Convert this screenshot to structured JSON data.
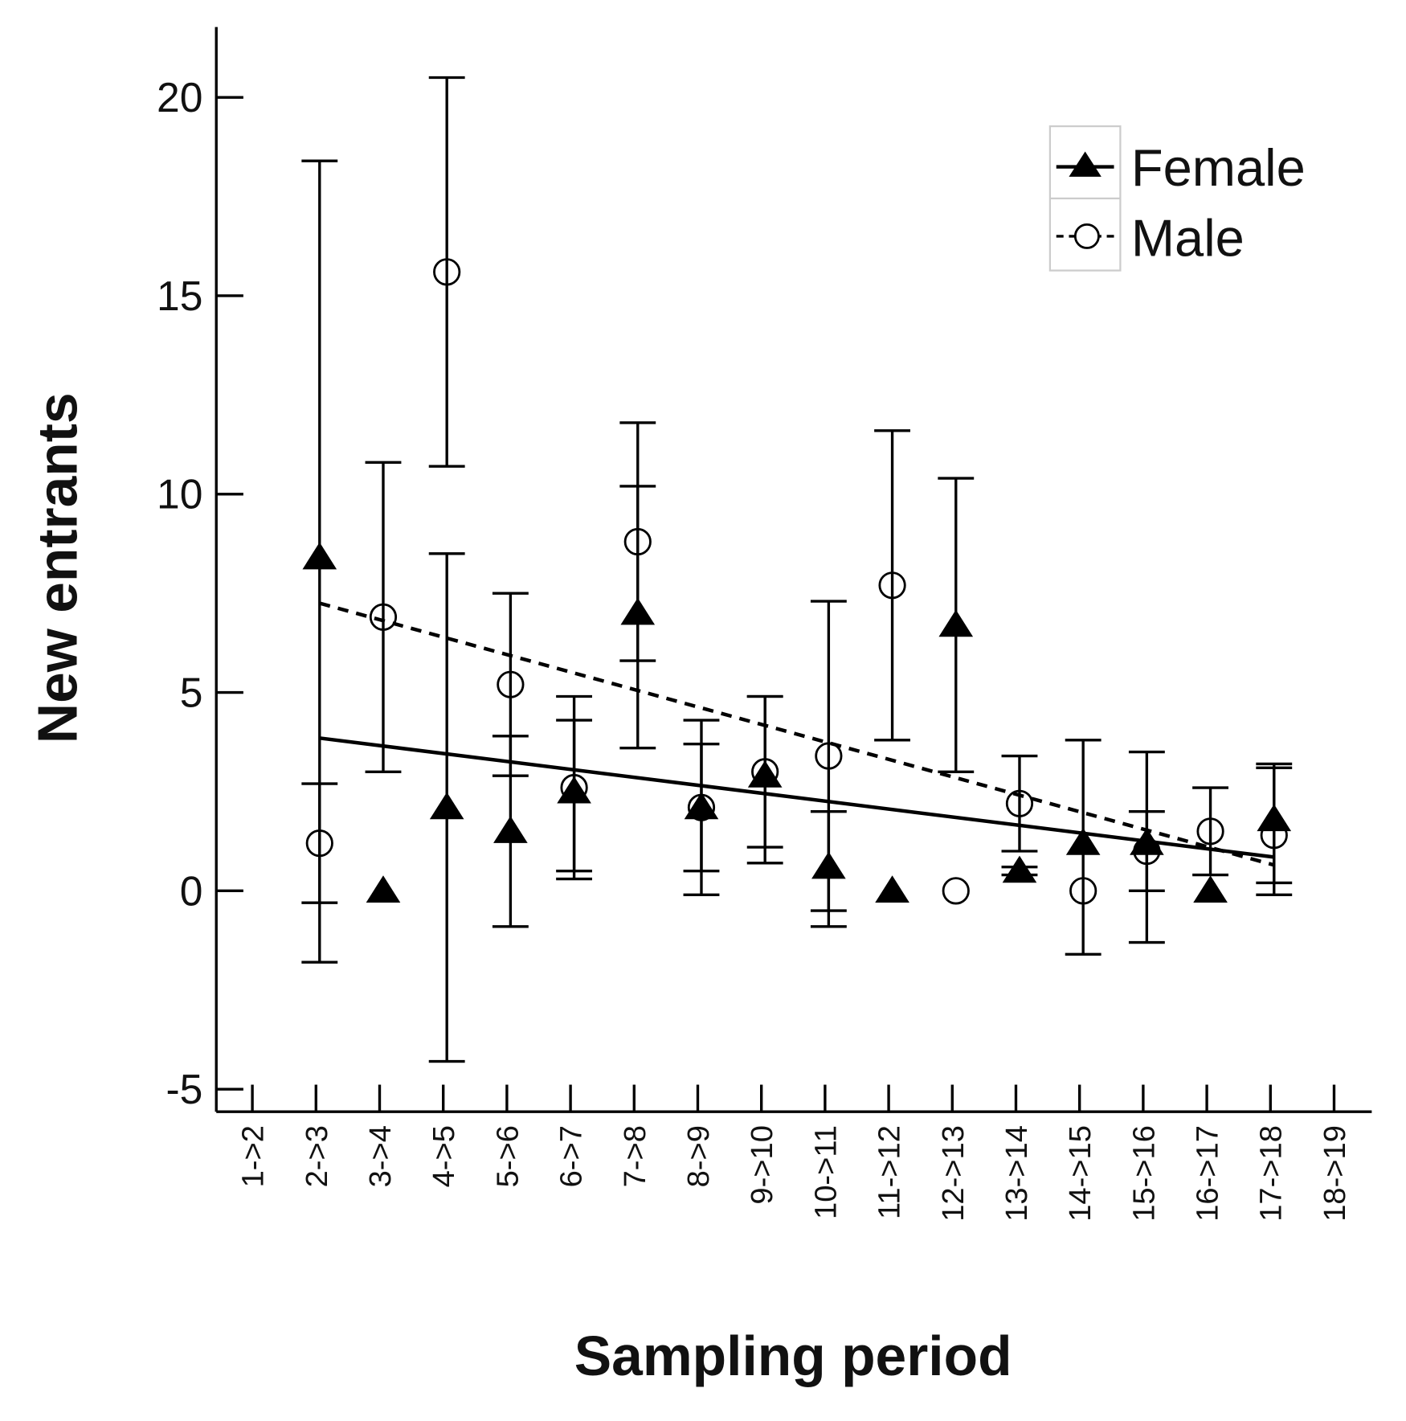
{
  "chart_data": {
    "type": "scatter",
    "title": "",
    "xlabel": "Sampling period",
    "ylabel": "New entrants",
    "ylim": [
      -5,
      20
    ],
    "yticks": [
      "-5",
      "0",
      "5",
      "10",
      "15",
      "20"
    ],
    "categories": [
      "1->2",
      "2->3",
      "3->4",
      "4->5",
      "5->6",
      "6->7",
      "7->8",
      "8->9",
      "9->10",
      "10->11",
      "11->12",
      "12->13",
      "13->14",
      "14->15",
      "15->16",
      "16->17",
      "17->18",
      "18->19"
    ],
    "legend": {
      "position": "top-right",
      "entries": [
        "Female",
        "Male"
      ]
    },
    "series": [
      {
        "name": "Female",
        "marker": "filled-triangle",
        "trend": "solid",
        "trend_line": {
          "from": {
            "x": "2->3",
            "y": 3.85
          },
          "to": {
            "x": "17->18",
            "y": 0.85
          }
        },
        "points": [
          {
            "x": "2->3",
            "y": 8.4,
            "lo": -1.8,
            "hi": 18.4
          },
          {
            "x": "3->4",
            "y": 0
          },
          {
            "x": "4->5",
            "y": 2.1,
            "lo": -4.3,
            "hi": 8.5
          },
          {
            "x": "5->6",
            "y": 1.5,
            "lo": -0.9,
            "hi": 3.9
          },
          {
            "x": "6->7",
            "y": 2.5,
            "lo": 0.3,
            "hi": 4.9
          },
          {
            "x": "7->8",
            "y": 7.0,
            "lo": 3.6,
            "hi": 10.2
          },
          {
            "x": "8->9",
            "y": 2.1,
            "lo": -0.1,
            "hi": 4.3
          },
          {
            "x": "9->10",
            "y": 2.9,
            "lo": 0.7,
            "hi": 4.9
          },
          {
            "x": "10->11",
            "y": 0.6,
            "lo": -0.9,
            "hi": 2.0
          },
          {
            "x": "11->12",
            "y": 0
          },
          {
            "x": "12->13",
            "y": 6.7,
            "lo": 3.0,
            "hi": 10.4
          },
          {
            "x": "13->14",
            "y": 0.5,
            "lo": 0.4,
            "hi": 0.6
          },
          {
            "x": "14->15",
            "y": 1.2,
            "lo": -1.6,
            "hi": 3.8
          },
          {
            "x": "15->16",
            "y": 1.2,
            "lo": -1.3,
            "hi": 3.5
          },
          {
            "x": "16->17",
            "y": 0
          },
          {
            "x": "17->18",
            "y": 1.8,
            "lo": 0.2,
            "hi": 3.2
          }
        ]
      },
      {
        "name": "Male",
        "marker": "open-circle",
        "trend": "dashed",
        "trend_line": {
          "from": {
            "x": "2->3",
            "y": 7.25
          },
          "to": {
            "x": "17->18",
            "y": 0.65
          }
        },
        "points": [
          {
            "x": "2->3",
            "y": 1.2,
            "lo": -0.3,
            "hi": 2.7
          },
          {
            "x": "3->4",
            "y": 6.9,
            "lo": 3.0,
            "hi": 10.8
          },
          {
            "x": "4->5",
            "y": 15.6,
            "lo": 10.7,
            "hi": 20.5
          },
          {
            "x": "5->6",
            "y": 5.2,
            "lo": 2.9,
            "hi": 7.5
          },
          {
            "x": "6->7",
            "y": 2.6,
            "lo": 0.5,
            "hi": 4.3
          },
          {
            "x": "7->8",
            "y": 8.8,
            "lo": 5.8,
            "hi": 11.8
          },
          {
            "x": "8->9",
            "y": 2.1,
            "lo": 0.5,
            "hi": 3.7
          },
          {
            "x": "9->10",
            "y": 3.0,
            "lo": 1.1,
            "hi": 4.9
          },
          {
            "x": "10->11",
            "y": 3.4,
            "lo": -0.5,
            "hi": 7.3
          },
          {
            "x": "11->12",
            "y": 7.7,
            "lo": 3.8,
            "hi": 11.6
          },
          {
            "x": "12->13",
            "y": 0
          },
          {
            "x": "13->14",
            "y": 2.2,
            "lo": 1.0,
            "hi": 3.4
          },
          {
            "x": "14->15",
            "y": 0
          },
          {
            "x": "15->16",
            "y": 1.0,
            "lo": 0.0,
            "hi": 2.0
          },
          {
            "x": "16->17",
            "y": 1.5,
            "lo": 0.4,
            "hi": 2.6
          },
          {
            "x": "17->18",
            "y": 1.4,
            "lo": -0.1,
            "hi": 3.1
          }
        ]
      }
    ]
  }
}
